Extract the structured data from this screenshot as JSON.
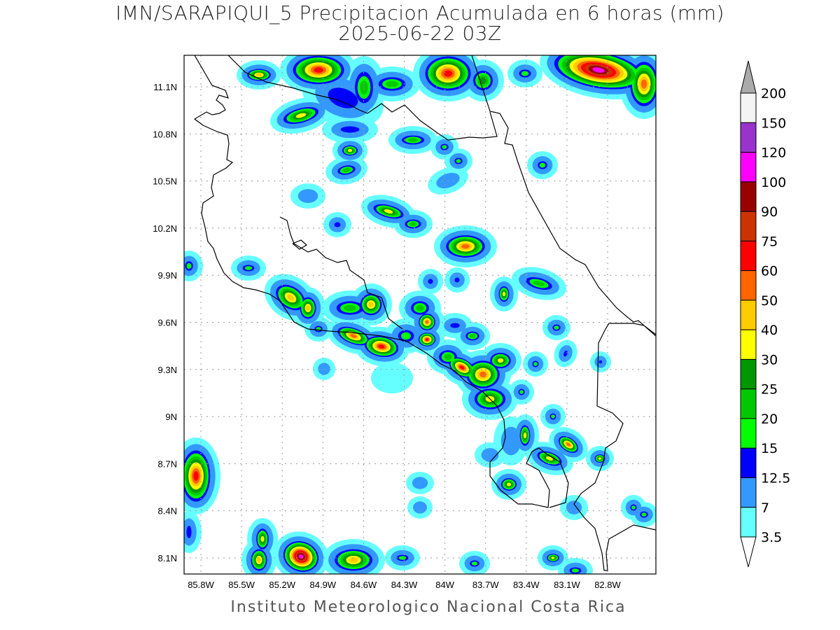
{
  "title": {
    "line1": "IMN/SARAPIQUI_5 Precipitacion Acumulada en 6 horas (mm)",
    "line2": "2025-06-22 03Z"
  },
  "footer": "Instituto Meteorologico Nacional Costa Rica",
  "map": {
    "lon_ticks": [
      "85.8W",
      "85.5W",
      "85.2W",
      "84.9W",
      "84.6W",
      "84.3W",
      "84W",
      "83.7W",
      "83.4W",
      "83.1W",
      "82.8W"
    ],
    "lat_ticks": [
      "11.1N",
      "10.8N",
      "10.5N",
      "10.2N",
      "9.9N",
      "9.6N",
      "9.3N",
      "9N",
      "8.7N",
      "8.4N",
      "8.1N"
    ],
    "grid": "dotted",
    "extent": {
      "lon": [
        -85.92,
        -82.44
      ],
      "lat": [
        8.0,
        11.3
      ]
    }
  },
  "colorbar": {
    "labels": [
      "200",
      "150",
      "120",
      "100",
      "90",
      "75",
      "60",
      "50",
      "40",
      "30",
      "25",
      "20",
      "15",
      "12.5",
      "7",
      "3.5"
    ],
    "colors": [
      "#f4f4f4",
      "#9933cc",
      "#ff00ff",
      "#990000",
      "#cc3300",
      "#ff0000",
      "#ff6600",
      "#ffcc00",
      "#ffff00",
      "#009600",
      "#00c800",
      "#00ff00",
      "#0000ff",
      "#3399ff",
      "#66ffff"
    ],
    "over_color": "#aaaaaa",
    "under_color": "#ffffff"
  }
}
